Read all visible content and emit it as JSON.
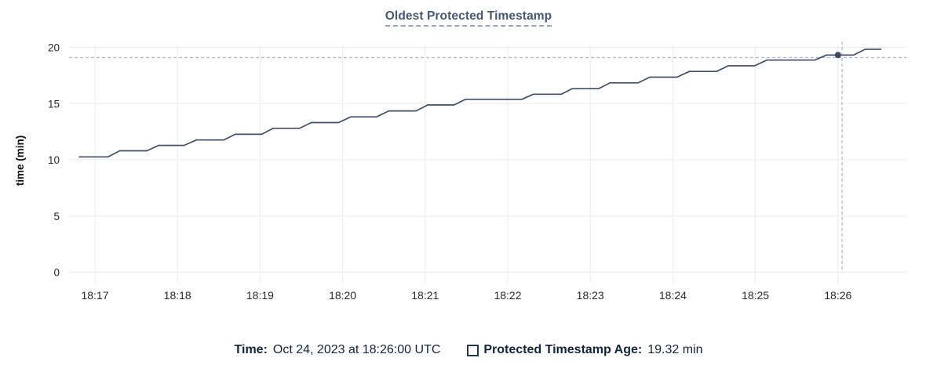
{
  "title": "Oldest Protected Timestamp",
  "legend": {
    "time_label": "Time:",
    "time_value": "Oct 24, 2023 at 18:26:00 UTC",
    "series_label": "Protected Timestamp Age:",
    "series_value": "19.32 min"
  },
  "hover": {
    "point_t_min": 9.0,
    "point_value": 19.32,
    "crosshair_t_min": 9.05,
    "crosshair_value": 19.1
  },
  "colors": {
    "line": "#424f69",
    "dot": "#3e4a60",
    "title_text": "#475872",
    "legend_text": "#16233c",
    "tick_text": "#2b2b2b",
    "axis_label_text": "#111111",
    "grid": "#efefef",
    "axis_line": "#ebebeb",
    "crosshair": "#aebccb"
  },
  "chart_data": {
    "type": "line",
    "title": "Oldest Protected Timestamp",
    "xlabel": "",
    "ylabel": "time (min)",
    "ylim": [
      0,
      20
    ],
    "y_ticks": [
      0,
      5,
      10,
      15,
      20
    ],
    "x_tick_labels": [
      "18:17",
      "18:18",
      "18:19",
      "18:20",
      "18:21",
      "18:22",
      "18:23",
      "18:24",
      "18:25",
      "18:26"
    ],
    "grid": true,
    "legend_position": "bottom-center",
    "series": [
      {
        "name": "Protected Timestamp Age",
        "unit": "min",
        "points_t_min_vs_value": [
          [
            -0.19,
            10.26
          ],
          [
            0.16,
            10.26
          ],
          [
            0.3,
            10.8
          ],
          [
            0.63,
            10.8
          ],
          [
            0.77,
            11.28
          ],
          [
            1.08,
            11.28
          ],
          [
            1.23,
            11.76
          ],
          [
            1.56,
            11.76
          ],
          [
            1.7,
            12.27
          ],
          [
            2.02,
            12.27
          ],
          [
            2.16,
            12.8
          ],
          [
            2.48,
            12.8
          ],
          [
            2.62,
            13.31
          ],
          [
            2.95,
            13.31
          ],
          [
            3.1,
            13.82
          ],
          [
            3.41,
            13.82
          ],
          [
            3.56,
            14.35
          ],
          [
            3.89,
            14.35
          ],
          [
            4.03,
            14.88
          ],
          [
            4.35,
            14.88
          ],
          [
            4.49,
            15.38
          ],
          [
            5.17,
            15.38
          ],
          [
            5.31,
            15.83
          ],
          [
            5.65,
            15.83
          ],
          [
            5.78,
            16.33
          ],
          [
            6.1,
            16.33
          ],
          [
            6.24,
            16.84
          ],
          [
            6.58,
            16.84
          ],
          [
            6.72,
            17.35
          ],
          [
            7.05,
            17.35
          ],
          [
            7.2,
            17.86
          ],
          [
            7.53,
            17.86
          ],
          [
            7.67,
            18.36
          ],
          [
            7.99,
            18.36
          ],
          [
            8.14,
            18.87
          ],
          [
            8.72,
            18.87
          ],
          [
            8.86,
            19.32
          ],
          [
            9.19,
            19.32
          ],
          [
            9.33,
            19.83
          ],
          [
            9.52,
            19.83
          ]
        ]
      }
    ]
  }
}
